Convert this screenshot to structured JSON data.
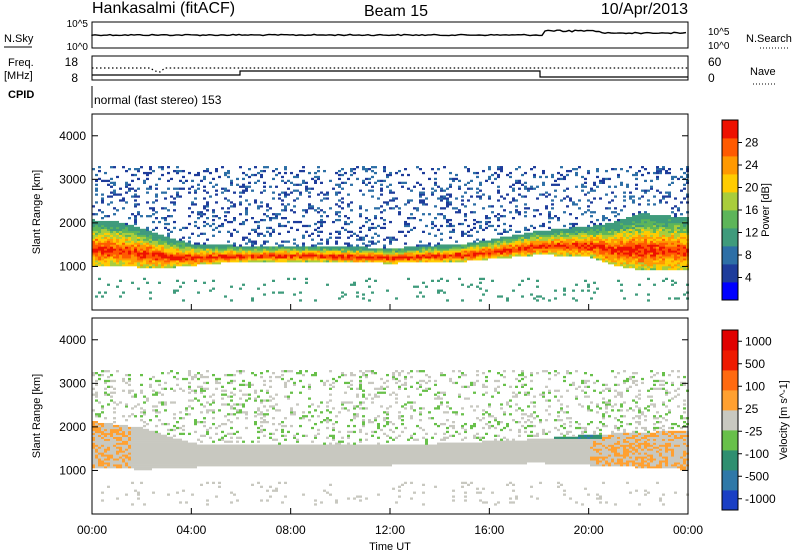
{
  "header": {
    "station": "Hankasalmi (fitACF)",
    "beam": "Beam 15",
    "date": "10/Apr/2013"
  },
  "panels": {
    "noise": {
      "left_label": "N.Sky",
      "right_label": "N.Search",
      "left_ticks": [
        "10^5",
        "10^0"
      ],
      "right_ticks": [
        "10^5",
        "10^0"
      ]
    },
    "freq": {
      "left_label_1": "Freq.",
      "left_label_2": "[MHz]",
      "right_label": "Nave",
      "left_ticks": [
        "18",
        "8"
      ],
      "right_ticks": [
        "60",
        "0"
      ]
    },
    "cpid": {
      "left_label": "CPID",
      "text": "normal (fast stereo) 153"
    }
  },
  "chart_data": [
    {
      "type": "heatmap",
      "title": "",
      "xlabel": "",
      "ylabel": "Slant Range [km]",
      "xlim": [
        "00:00",
        "24:00"
      ],
      "ylim": [
        0,
        4500
      ],
      "y_ticks": [
        1000,
        2000,
        3000,
        4000
      ],
      "colorbar": {
        "label": "Power [dB]",
        "range": [
          0,
          32
        ],
        "ticks": [
          4,
          8,
          12,
          16,
          20,
          24,
          28
        ],
        "colors": [
          "#0000ff",
          "#1e3c9b",
          "#2d6fa6",
          "#3f9b7c",
          "#5db55a",
          "#a9cd3b",
          "#ffcc00",
          "#ff9900",
          "#ff5a00",
          "#ee1100"
        ]
      },
      "series": [
        {
          "values": [
            {
              "x": "00:00",
              "lower": 1000,
              "upper": 2050
            },
            {
              "x": "01:00",
              "lower": 1000,
              "upper": 2000
            },
            {
              "x": "02:00",
              "lower": 950,
              "upper": 1850
            },
            {
              "x": "03:00",
              "lower": 950,
              "upper": 1650
            },
            {
              "x": "04:00",
              "lower": 1000,
              "upper": 1500
            },
            {
              "x": "06:00",
              "lower": 1100,
              "upper": 1450
            },
            {
              "x": "09:00",
              "lower": 1100,
              "upper": 1450
            },
            {
              "x": "12:00",
              "lower": 1050,
              "upper": 1400
            },
            {
              "x": "15:00",
              "lower": 1100,
              "upper": 1500
            },
            {
              "x": "18:00",
              "lower": 1250,
              "upper": 1800
            },
            {
              "x": "20:00",
              "lower": 1200,
              "upper": 1900
            },
            {
              "x": "21:00",
              "lower": 1000,
              "upper": 2000
            },
            {
              "x": "22:00",
              "lower": 900,
              "upper": 2200
            },
            {
              "x": "24:00",
              "lower": 900,
              "upper": 2100
            }
          ]
        }
      ]
    },
    {
      "type": "heatmap",
      "title": "",
      "xlabel": "Time UT",
      "ylabel": "Slant Range [km]",
      "xlim": [
        "00:00",
        "24:00"
      ],
      "ylim": [
        0,
        4500
      ],
      "x_ticks": [
        "00:00",
        "04:00",
        "08:00",
        "12:00",
        "16:00",
        "20:00",
        "00:00"
      ],
      "y_ticks": [
        1000,
        2000,
        3000,
        4000
      ],
      "colorbar": {
        "label": "Velocity [m s^-1]",
        "ticks": [
          "1000",
          "500",
          "100",
          "25",
          "-25",
          "-100",
          "-500",
          "-1000"
        ],
        "colors": [
          "#1a3fc4",
          "#2f78a8",
          "#2f8f70",
          "#68c04a",
          "#c8c8c0",
          "#ffa030",
          "#ff6a10",
          "#ee1a00",
          "#e00000"
        ]
      },
      "series": [
        {
          "values": [
            {
              "x": "00:00",
              "lower": 1050,
              "upper": 2100
            },
            {
              "x": "02:00",
              "lower": 1000,
              "upper": 1950
            },
            {
              "x": "04:00",
              "lower": 1050,
              "upper": 1600
            },
            {
              "x": "06:00",
              "lower": 1100,
              "upper": 1550
            },
            {
              "x": "12:00",
              "lower": 1100,
              "upper": 1550
            },
            {
              "x": "18:00",
              "lower": 1150,
              "upper": 1700
            },
            {
              "x": "20:00",
              "lower": 1100,
              "upper": 1800
            },
            {
              "x": "24:00",
              "lower": 1000,
              "upper": 1900
            }
          ]
        }
      ]
    }
  ]
}
